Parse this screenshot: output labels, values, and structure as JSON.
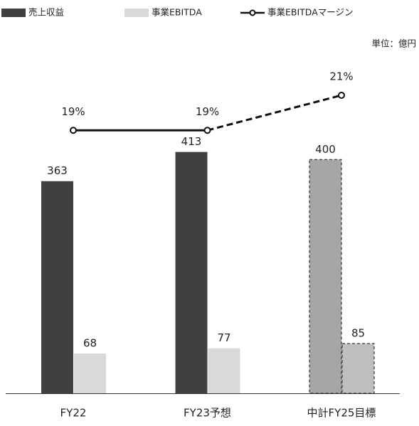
{
  "chart_data": {
    "type": "bar",
    "categories": [
      "FY22",
      "FY23予想",
      "中計FY25目標"
    ],
    "annotation": "単位：億円",
    "ylim": [
      0,
      600
    ],
    "y2lim": [
      4,
      24
    ],
    "series": [
      {
        "name": "売上収益",
        "type": "bar",
        "color": "#404040",
        "colors": [
          "#404040",
          "#404040",
          "#a6a6a6"
        ],
        "dashed": [
          false,
          false,
          true
        ],
        "values": [
          363,
          413,
          400
        ]
      },
      {
        "name": "事業EBITDA",
        "type": "bar",
        "color": "#d9d9d9",
        "colors": [
          "#d9d9d9",
          "#d9d9d9",
          "#bfbfbf"
        ],
        "dashed": [
          false,
          false,
          true
        ],
        "values": [
          68,
          77,
          85
        ]
      },
      {
        "name": "事業EBITDAマージン",
        "type": "line",
        "axis": "y2",
        "color": "#111111",
        "dashed": [
          false,
          false,
          true
        ],
        "values": [
          19,
          19,
          21
        ],
        "value_labels": [
          "19%",
          "19%",
          "21%"
        ]
      }
    ]
  }
}
